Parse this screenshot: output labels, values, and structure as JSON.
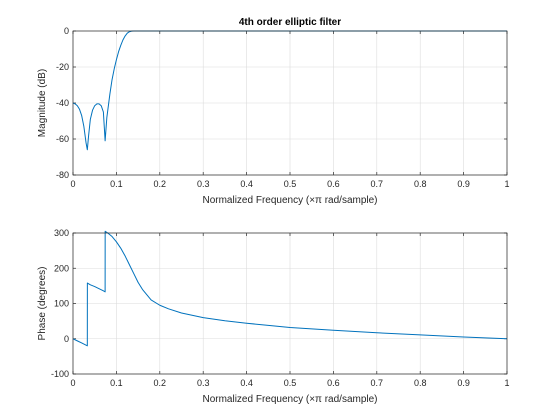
{
  "chart_data": [
    {
      "type": "line",
      "title": "4th order elliptic filter",
      "xlabel": "Normalized Frequency  (×π rad/sample)",
      "ylabel": "Magnitude (dB)",
      "xlim": [
        0,
        1
      ],
      "ylim": [
        -80,
        0
      ],
      "xticks": [
        "0",
        "0.1",
        "0.2",
        "0.3",
        "0.4",
        "0.5",
        "0.6",
        "0.7",
        "0.8",
        "0.9",
        "1"
      ],
      "yticks": [
        "0",
        "-20",
        "-40",
        "-60",
        "-80"
      ],
      "grid": true,
      "line_color": "#0072BD",
      "series": [
        {
          "x": [
            0,
            0.005,
            0.01,
            0.015,
            0.02,
            0.025,
            0.03,
            0.033,
            0.036,
            0.04,
            0.045,
            0.05,
            0.055,
            0.06,
            0.065,
            0.07,
            0.074,
            0.078,
            0.085,
            0.09,
            0.095,
            0.1,
            0.105,
            0.11,
            0.115,
            0.12,
            0.125,
            0.13,
            0.135,
            0.14,
            0.145,
            0.15,
            1
          ],
          "y": [
            -40,
            -40.5,
            -41.5,
            -43.5,
            -47,
            -53,
            -62,
            -66,
            -58,
            -49,
            -44,
            -41.5,
            -40.5,
            -40.5,
            -41.5,
            -45,
            -61,
            -48,
            -35,
            -27,
            -21,
            -16,
            -11.5,
            -8,
            -5,
            -2.8,
            -1.2,
            -0.4,
            -0.1,
            0,
            0,
            0,
            0
          ]
        }
      ]
    },
    {
      "type": "line",
      "title": "",
      "xlabel": "Normalized Frequency  (×π rad/sample)",
      "ylabel": "Phase (degrees)",
      "xlim": [
        0,
        1
      ],
      "ylim": [
        -100,
        300
      ],
      "xticks": [
        "0",
        "0.1",
        "0.2",
        "0.3",
        "0.4",
        "0.5",
        "0.6",
        "0.7",
        "0.8",
        "0.9",
        "1"
      ],
      "yticks": [
        "300",
        "200",
        "100",
        "0",
        "-100"
      ],
      "grid": true,
      "line_color": "#0072BD",
      "series": [
        {
          "x": [
            0,
            0.01,
            0.02,
            0.033,
            0.0331,
            0.04,
            0.05,
            0.06,
            0.07,
            0.074,
            0.0741,
            0.08,
            0.09,
            0.1,
            0.11,
            0.12,
            0.13,
            0.14,
            0.15,
            0.16,
            0.17,
            0.18,
            0.2,
            0.22,
            0.25,
            0.3,
            0.35,
            0.4,
            0.45,
            0.5,
            0.6,
            0.7,
            0.8,
            0.9,
            1.0
          ],
          "y": [
            0,
            -6,
            -12,
            -20,
            158,
            153,
            148,
            142,
            136,
            133,
            305,
            300,
            290,
            275,
            257,
            235,
            210,
            185,
            160,
            140,
            125,
            110,
            95,
            85,
            73,
            60,
            51,
            44,
            38,
            32,
            24,
            17,
            11,
            5,
            0
          ]
        }
      ]
    }
  ]
}
